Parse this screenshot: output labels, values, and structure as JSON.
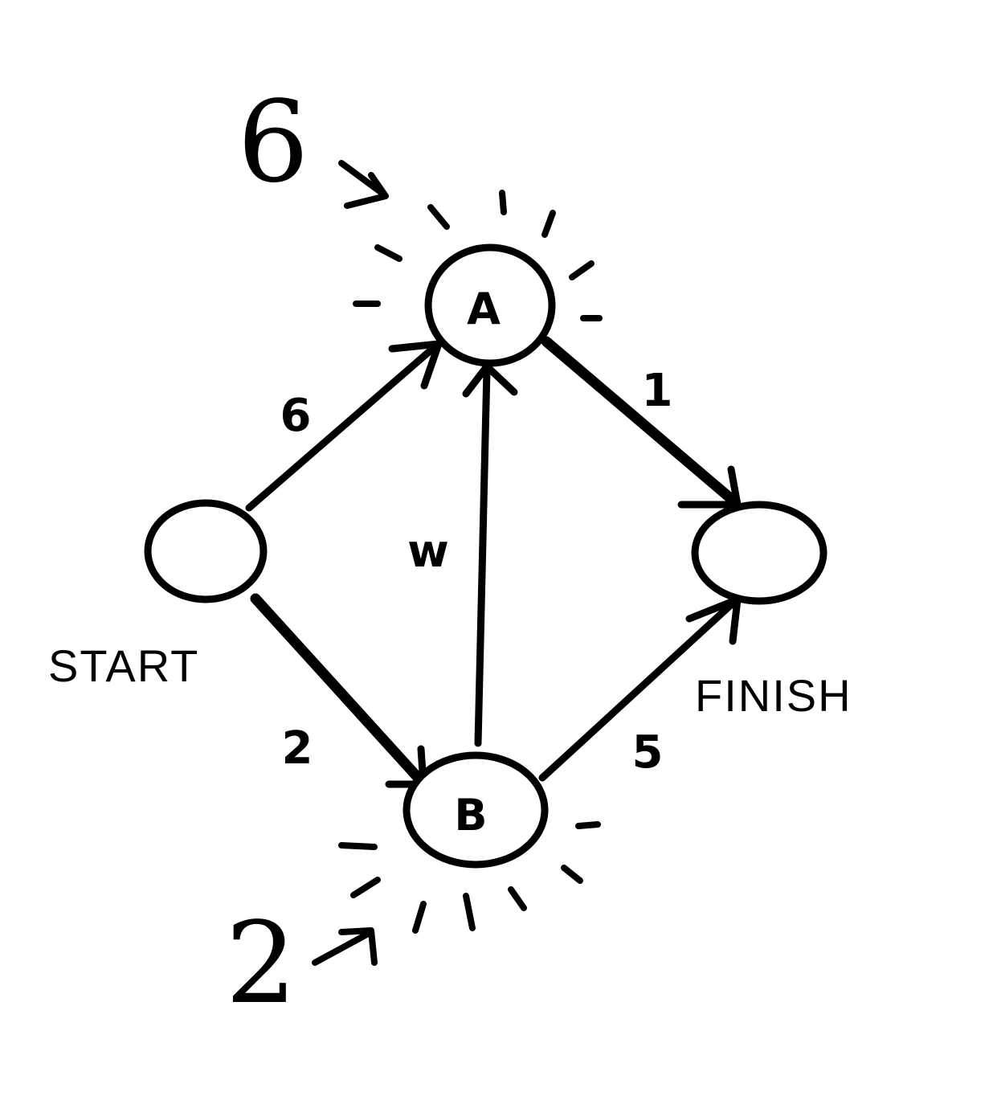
{
  "nodes": {
    "start": {
      "label": "",
      "caption": "START"
    },
    "a": {
      "label": "A"
    },
    "b": {
      "label": "B"
    },
    "finish": {
      "label": "",
      "caption": "FINISH"
    }
  },
  "edges": {
    "start_a": {
      "weight": "6"
    },
    "start_b": {
      "weight": "2"
    },
    "b_a": {
      "weight": "w"
    },
    "a_finish": {
      "weight": "1"
    },
    "b_finish": {
      "weight": "5"
    }
  },
  "costs": {
    "a": "6",
    "b": "2"
  },
  "icons": {
    "highlight": "glow-rays-icon",
    "pointer": "arrow-icon"
  },
  "colors": {
    "ink": "#000000",
    "paper": "#ffffff"
  }
}
